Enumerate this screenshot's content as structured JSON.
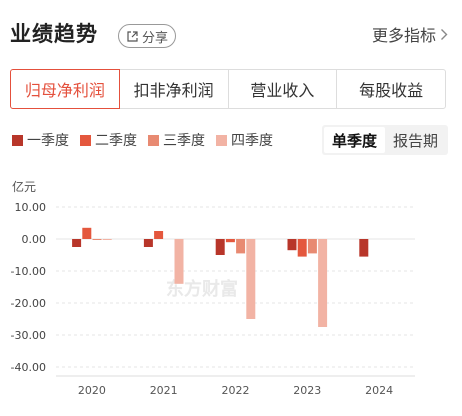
{
  "header": {
    "title": "业绩趋势",
    "share_label": "分享",
    "more_label": "更多指标"
  },
  "tabs": [
    {
      "label": "归母净利润",
      "active": true
    },
    {
      "label": "扣非净利润",
      "active": false
    },
    {
      "label": "营业收入",
      "active": false
    },
    {
      "label": "每股收益",
      "active": false
    }
  ],
  "period_toggle": [
    {
      "label": "单季度",
      "active": true
    },
    {
      "label": "报告期",
      "active": false
    }
  ],
  "watermark": "东方财富",
  "chart_data": {
    "type": "bar",
    "unit_label": "亿元",
    "categories": [
      "2020",
      "2021",
      "2022",
      "2023",
      "2024"
    ],
    "ylim": [
      -40,
      10
    ],
    "yticks": [
      "10.00",
      "0.00",
      "-10.00",
      "-20.00",
      "-30.00",
      "-40.00"
    ],
    "grid": true,
    "legend_position": "top-left",
    "series": [
      {
        "name": "一季度",
        "color": "#b8362a",
        "values": [
          -2.5,
          -2.5,
          -5.0,
          -3.5,
          -5.5
        ]
      },
      {
        "name": "二季度",
        "color": "#e4573d",
        "values": [
          3.5,
          2.5,
          -1.0,
          -5.5,
          null
        ]
      },
      {
        "name": "三季度",
        "color": "#e88a72",
        "values": [
          -0.3,
          null,
          -4.5,
          -4.5,
          null
        ]
      },
      {
        "name": "四季度",
        "color": "#f2b3a4",
        "values": [
          -0.2,
          -14.0,
          -25.0,
          -27.5,
          null
        ]
      }
    ]
  }
}
